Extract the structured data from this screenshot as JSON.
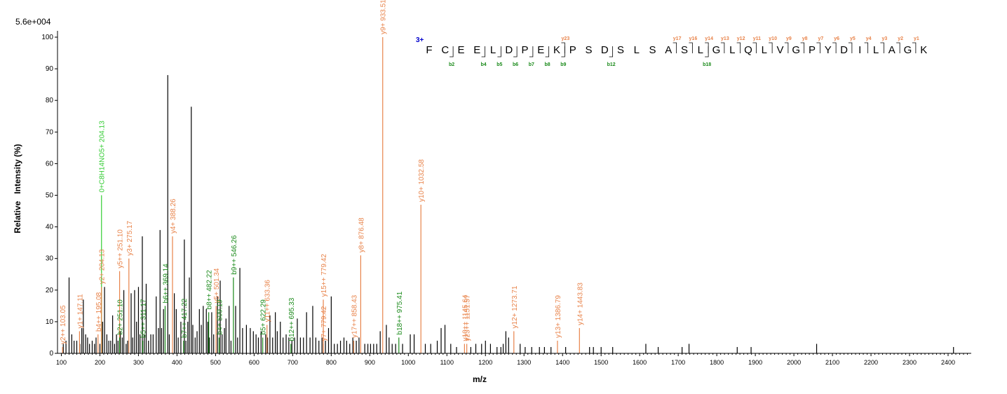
{
  "chart_data": {
    "type": "bar",
    "title": "",
    "max_label": "5.6e+004",
    "xlabel": "m/z",
    "ylabel": "Relative   Intensity (%)",
    "xlim": [
      90,
      2460
    ],
    "ylim": [
      0,
      102
    ],
    "x_ticks": [
      100,
      200,
      300,
      400,
      500,
      600,
      700,
      800,
      900,
      1000,
      1100,
      1200,
      1300,
      1400,
      1500,
      1600,
      1700,
      1800,
      1900,
      2000,
      2100,
      2200,
      2300,
      2400
    ],
    "y_ticks": [
      0,
      10,
      20,
      30,
      40,
      50,
      60,
      70,
      80,
      90,
      100
    ],
    "colors": {
      "y_ion": "#e8834a",
      "b_ion": "#1a8a1a",
      "other_ion": "#33cc33",
      "unassigned": "#000000",
      "charge": "#0000cc"
    },
    "unassigned_peaks": [
      [
        105,
        3
      ],
      [
        112,
        4
      ],
      [
        120,
        24
      ],
      [
        127,
        6
      ],
      [
        133,
        4
      ],
      [
        140,
        4
      ],
      [
        148,
        3
      ],
      [
        153,
        8
      ],
      [
        157,
        17
      ],
      [
        163,
        6
      ],
      [
        168,
        5
      ],
      [
        173,
        3
      ],
      [
        180,
        4
      ],
      [
        186,
        3
      ],
      [
        190,
        5
      ],
      [
        200,
        3
      ],
      [
        207,
        10
      ],
      [
        212,
        21
      ],
      [
        218,
        6
      ],
      [
        223,
        4
      ],
      [
        228,
        4
      ],
      [
        233,
        12
      ],
      [
        238,
        3
      ],
      [
        243,
        6
      ],
      [
        247,
        4
      ],
      [
        253,
        7
      ],
      [
        258,
        5
      ],
      [
        262,
        20
      ],
      [
        268,
        3
      ],
      [
        272,
        4
      ],
      [
        281,
        19
      ],
      [
        285,
        5
      ],
      [
        290,
        20
      ],
      [
        295,
        10
      ],
      [
        300,
        21
      ],
      [
        304,
        6
      ],
      [
        310,
        37
      ],
      [
        315,
        6
      ],
      [
        320,
        22
      ],
      [
        326,
        4
      ],
      [
        332,
        6
      ],
      [
        338,
        6
      ],
      [
        346,
        18
      ],
      [
        352,
        8
      ],
      [
        356,
        39
      ],
      [
        360,
        8
      ],
      [
        365,
        14
      ],
      [
        376,
        88
      ],
      [
        380,
        6
      ],
      [
        393,
        19
      ],
      [
        398,
        14
      ],
      [
        403,
        5
      ],
      [
        410,
        10
      ],
      [
        419,
        36
      ],
      [
        423,
        4
      ],
      [
        428,
        10
      ],
      [
        432,
        24
      ],
      [
        437,
        78
      ],
      [
        441,
        9
      ],
      [
        447,
        5
      ],
      [
        452,
        7
      ],
      [
        458,
        14
      ],
      [
        463,
        9
      ],
      [
        468,
        15
      ],
      [
        476,
        14
      ],
      [
        480,
        10
      ],
      [
        484,
        5
      ],
      [
        490,
        13
      ],
      [
        495,
        6
      ],
      [
        505,
        18
      ],
      [
        512,
        23
      ],
      [
        517,
        6
      ],
      [
        523,
        8
      ],
      [
        527,
        11
      ],
      [
        535,
        15
      ],
      [
        540,
        4
      ],
      [
        552,
        15
      ],
      [
        557,
        5
      ],
      [
        563,
        27
      ],
      [
        570,
        8
      ],
      [
        580,
        9
      ],
      [
        590,
        8
      ],
      [
        598,
        7
      ],
      [
        605,
        6
      ],
      [
        611,
        5
      ],
      [
        618,
        7
      ],
      [
        630,
        6
      ],
      [
        635,
        5
      ],
      [
        641,
        12
      ],
      [
        648,
        5
      ],
      [
        655,
        13
      ],
      [
        660,
        7
      ],
      [
        668,
        10
      ],
      [
        675,
        5
      ],
      [
        683,
        6
      ],
      [
        690,
        5
      ],
      [
        698,
        4
      ],
      [
        705,
        5
      ],
      [
        712,
        11
      ],
      [
        720,
        5
      ],
      [
        728,
        5
      ],
      [
        736,
        13
      ],
      [
        745,
        5
      ],
      [
        752,
        15
      ],
      [
        760,
        5
      ],
      [
        768,
        4
      ],
      [
        776,
        5
      ],
      [
        785,
        4
      ],
      [
        793,
        8
      ],
      [
        800,
        18
      ],
      [
        808,
        3
      ],
      [
        816,
        3
      ],
      [
        824,
        4
      ],
      [
        833,
        5
      ],
      [
        840,
        4
      ],
      [
        848,
        3
      ],
      [
        856,
        5
      ],
      [
        865,
        4
      ],
      [
        872,
        5
      ],
      [
        887,
        3
      ],
      [
        895,
        3
      ],
      [
        902,
        3
      ],
      [
        910,
        3
      ],
      [
        918,
        3
      ],
      [
        927,
        7
      ],
      [
        943,
        9
      ],
      [
        950,
        5
      ],
      [
        958,
        3
      ],
      [
        967,
        3
      ],
      [
        985,
        3
      ],
      [
        1005,
        6
      ],
      [
        1015,
        6
      ],
      [
        1044,
        3
      ],
      [
        1058,
        3
      ],
      [
        1075,
        4
      ],
      [
        1085,
        8
      ],
      [
        1095,
        9
      ],
      [
        1110,
        3
      ],
      [
        1125,
        2
      ],
      [
        1162,
        2
      ],
      [
        1175,
        3
      ],
      [
        1190,
        3
      ],
      [
        1200,
        4
      ],
      [
        1213,
        3
      ],
      [
        1230,
        2
      ],
      [
        1240,
        2
      ],
      [
        1246,
        3
      ],
      [
        1253,
        7
      ],
      [
        1260,
        5
      ],
      [
        1290,
        3
      ],
      [
        1303,
        2
      ],
      [
        1320,
        2
      ],
      [
        1340,
        2
      ],
      [
        1353,
        2
      ],
      [
        1370,
        2
      ],
      [
        1408,
        2
      ],
      [
        1470,
        2
      ],
      [
        1480,
        2
      ],
      [
        1500,
        2
      ],
      [
        1530,
        2
      ],
      [
        1616,
        3
      ],
      [
        1648,
        2
      ],
      [
        1710,
        2
      ],
      [
        1728,
        3
      ],
      [
        1853,
        2
      ],
      [
        1889,
        2
      ],
      [
        2059,
        3
      ],
      [
        2414,
        2
      ]
    ],
    "assigned_peaks": [
      {
        "x": 103.05,
        "y": 2,
        "label": "y2++ 103.05",
        "type": "y"
      },
      {
        "x": 147.11,
        "y": 7,
        "label": "y1+ 147.11",
        "type": "y"
      },
      {
        "x": 195.08,
        "y": 6,
        "label": "b4++ 195.08",
        "type": "y"
      },
      {
        "x": 204.13,
        "y": 50,
        "label": "0+C8H14NO5+ 204.13",
        "type": "other"
      },
      {
        "x": 204.13,
        "y": 21,
        "label": "y2+ 204.13",
        "type": "y"
      },
      {
        "x": 251.1,
        "y": 26,
        "label": "y5++ 251.10",
        "type": "y"
      },
      {
        "x": 251.1,
        "y": 5,
        "label": "b2+ 251.10",
        "type": "b"
      },
      {
        "x": 275.17,
        "y": 30,
        "label": "y3+ 275.17",
        "type": "y"
      },
      {
        "x": 311.17,
        "y": 4,
        "label": "b5++ 311.17",
        "type": "b"
      },
      {
        "x": 369.14,
        "y": 15,
        "label": "b6++ 369.14",
        "type": "b"
      },
      {
        "x": 388.26,
        "y": 37,
        "label": "y4+ 388.26",
        "type": "y"
      },
      {
        "x": 417.22,
        "y": 4,
        "label": "b7++ 417.22",
        "type": "b"
      },
      {
        "x": 482.22,
        "y": 13,
        "label": "b8++ 482.22",
        "type": "b"
      },
      {
        "x": 501.34,
        "y": 15,
        "label": "y5+ 501.34",
        "type": "y"
      },
      {
        "x": 509.19,
        "y": 5,
        "label": "b4+ 509.19",
        "type": "b"
      },
      {
        "x": 546.26,
        "y": 24,
        "label": "b9++ 546.26",
        "type": "b"
      },
      {
        "x": 622.29,
        "y": 5,
        "label": "b5+ 622.29",
        "type": "b"
      },
      {
        "x": 633.36,
        "y": 9,
        "label": "y11++ 633.36",
        "type": "y"
      },
      {
        "x": 695.33,
        "y": 3,
        "label": "b12++ 695.33",
        "type": "b"
      },
      {
        "x": 779.42,
        "y": 3,
        "label": "y7+ 779.42",
        "type": "y"
      },
      {
        "x": 779.42,
        "y": 17,
        "label": "y15++ 779.42",
        "type": "y"
      },
      {
        "x": 858.43,
        "y": 4,
        "label": "y17++ 858.43",
        "type": "y"
      },
      {
        "x": 876.48,
        "y": 31,
        "label": "y8+ 876.48",
        "type": "y"
      },
      {
        "x": 933.51,
        "y": 100,
        "label": "y9+ 933.51",
        "type": "y"
      },
      {
        "x": 975.41,
        "y": 5,
        "label": "b18++ 975.41",
        "type": "b"
      },
      {
        "x": 1032.58,
        "y": 47,
        "label": "y10+ 1032.58",
        "type": "y"
      },
      {
        "x": 1145.64,
        "y": 3,
        "label": "y10++ 1145.64",
        "type": "y"
      },
      {
        "x": 1151.57,
        "y": 3,
        "label": "y23++ 1151.57",
        "type": "y"
      },
      {
        "x": 1273.71,
        "y": 7,
        "label": "y12+ 1273.71",
        "type": "y"
      },
      {
        "x": 1386.79,
        "y": 4,
        "label": "y13+ 1386.79",
        "type": "y"
      },
      {
        "x": 1443.83,
        "y": 8,
        "label": "y14+ 1443.83",
        "type": "y"
      }
    ],
    "sequence": {
      "charge_label": "3+",
      "residues": [
        "F",
        "C",
        "E",
        "E",
        "L",
        "D",
        "P",
        "E",
        "K",
        "P",
        "S",
        "D",
        "S",
        "L",
        "S",
        "A",
        "S",
        "L",
        "G",
        "L",
        "Q",
        "L",
        "V",
        "G",
        "P",
        "Y",
        "D",
        "I",
        "L",
        "A",
        "G",
        "K"
      ],
      "y_marks": [
        {
          "pos": 9,
          "label": "y23"
        },
        {
          "pos": 16,
          "label": "y17"
        },
        {
          "pos": 17,
          "label": "y16"
        },
        {
          "pos": 18,
          "label": "y14"
        },
        {
          "pos": 19,
          "label": "y13"
        },
        {
          "pos": 20,
          "label": "y12"
        },
        {
          "pos": 21,
          "label": "y11"
        },
        {
          "pos": 22,
          "label": "y10"
        },
        {
          "pos": 23,
          "label": "y9"
        },
        {
          "pos": 24,
          "label": "y8"
        },
        {
          "pos": 25,
          "label": "y7"
        },
        {
          "pos": 26,
          "label": "y6"
        },
        {
          "pos": 27,
          "label": "y5"
        },
        {
          "pos": 28,
          "label": "y4"
        },
        {
          "pos": 29,
          "label": "y3"
        },
        {
          "pos": 30,
          "label": "y2"
        },
        {
          "pos": 31,
          "label": "y1"
        }
      ],
      "b_marks": [
        {
          "pos": 2,
          "label": "b2"
        },
        {
          "pos": 4,
          "label": "b4"
        },
        {
          "pos": 5,
          "label": "b5"
        },
        {
          "pos": 6,
          "label": "b6"
        },
        {
          "pos": 7,
          "label": "b7"
        },
        {
          "pos": 8,
          "label": "b8"
        },
        {
          "pos": 9,
          "label": "b9"
        },
        {
          "pos": 12,
          "label": "b12"
        },
        {
          "pos": 18,
          "label": "b18"
        }
      ]
    }
  }
}
